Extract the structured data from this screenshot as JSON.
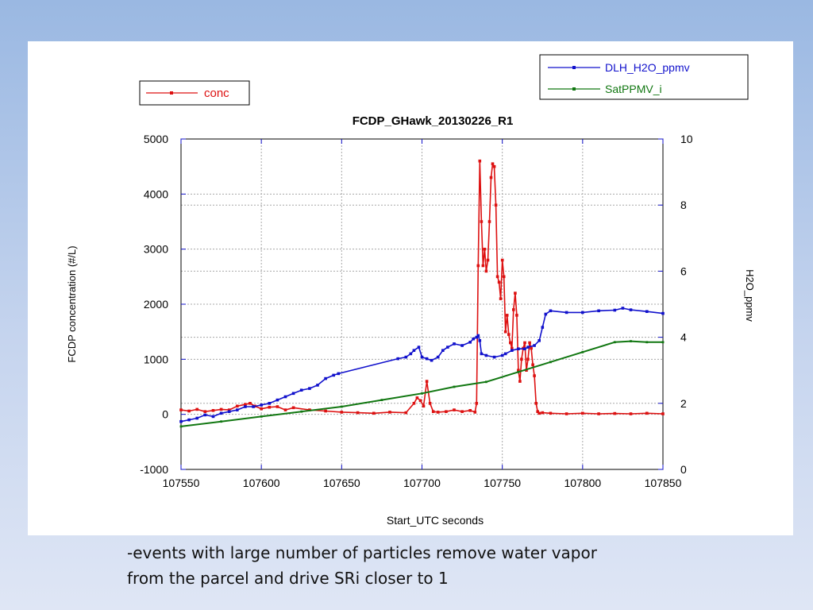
{
  "caption": {
    "line1": "-events with large number of particles remove water vapor",
    "line2": "from the parcel and drive SRi closer to 1"
  },
  "chart_data": {
    "type": "line",
    "title": "FCDP_GHawk_20130226_R1",
    "xlabel": "Start_UTC seconds",
    "ylabel_left": "FCDP concentration  (#/L)",
    "ylabel_right": "H2O_ppmv",
    "xlim": [
      107550,
      107850
    ],
    "ylim_left": [
      -1000,
      5000
    ],
    "ylim_right": [
      0,
      10
    ],
    "x_ticks": [
      107550,
      107600,
      107650,
      107700,
      107750,
      107800,
      107850
    ],
    "y_ticks_left": [
      -1000,
      0,
      1000,
      2000,
      3000,
      4000,
      5000
    ],
    "y_ticks_right": [
      0,
      2,
      4,
      6,
      8,
      10
    ],
    "grid": true,
    "legend_left": {
      "position": "top-left",
      "entries": [
        "conc"
      ]
    },
    "legend_right": {
      "position": "top-right",
      "entries": [
        "DLH_H2O_ppmv",
        "SatPPMV_i"
      ]
    },
    "series": [
      {
        "name": "conc",
        "axis": "left",
        "color": "#dd1111",
        "x": [
          107550,
          107555,
          107560,
          107565,
          107570,
          107575,
          107580,
          107585,
          107590,
          107593,
          107596,
          107600,
          107605,
          107610,
          107615,
          107620,
          107630,
          107640,
          107650,
          107660,
          107670,
          107680,
          107690,
          107695,
          107697,
          107699,
          107701,
          107703,
          107705,
          107707,
          107710,
          107715,
          107720,
          107725,
          107730,
          107733,
          107734,
          107735,
          107736,
          107737,
          107738,
          107739,
          107740,
          107741,
          107742,
          107743,
          107744,
          107745,
          107746,
          107747,
          107748,
          107749,
          107750,
          107751,
          107752,
          107753,
          107754,
          107755,
          107756,
          107757,
          107758,
          107759,
          107760,
          107761,
          107762,
          107763,
          107764,
          107765,
          107766,
          107767,
          107768,
          107769,
          107770,
          107771,
          107772,
          107773,
          107775,
          107780,
          107790,
          107800,
          107810,
          107820,
          107830,
          107840,
          107850
        ],
        "values": [
          80,
          60,
          90,
          50,
          70,
          90,
          80,
          150,
          180,
          200,
          150,
          100,
          130,
          140,
          80,
          120,
          80,
          60,
          40,
          30,
          20,
          40,
          30,
          200,
          300,
          250,
          150,
          600,
          200,
          50,
          40,
          50,
          80,
          50,
          70,
          40,
          200,
          2700,
          4600,
          3500,
          2700,
          3000,
          2600,
          2800,
          3500,
          4300,
          4550,
          4500,
          3800,
          2500,
          2400,
          2100,
          2800,
          2500,
          1500,
          1800,
          1450,
          1300,
          1200,
          1900,
          2200,
          1800,
          800,
          600,
          1000,
          1200,
          1300,
          800,
          1000,
          1300,
          1200,
          900,
          700,
          200,
          50,
          20,
          30,
          20,
          10,
          20,
          10,
          15,
          10,
          20,
          10
        ]
      },
      {
        "name": "DLH_H2O_ppmv",
        "axis": "right",
        "color": "#1111cc",
        "x": [
          107550,
          107555,
          107560,
          107565,
          107570,
          107575,
          107580,
          107585,
          107590,
          107595,
          107600,
          107605,
          107610,
          107615,
          107620,
          107625,
          107630,
          107635,
          107640,
          107645,
          107648,
          107685,
          107690,
          107693,
          107695,
          107698,
          107700,
          107703,
          107706,
          107710,
          107713,
          107716,
          107720,
          107725,
          107730,
          107732,
          107734,
          107735,
          107736,
          107737,
          107740,
          107745,
          107750,
          107752,
          107756,
          107760,
          107764,
          107766,
          107770,
          107773,
          107775,
          107777,
          107780,
          107790,
          107800,
          107810,
          107820,
          107825,
          107830,
          107840,
          107850
        ],
        "values": [
          1.45,
          1.5,
          1.55,
          1.65,
          1.6,
          1.7,
          1.75,
          1.8,
          1.9,
          1.9,
          1.95,
          2.0,
          2.1,
          2.2,
          2.3,
          2.4,
          2.45,
          2.55,
          2.75,
          2.85,
          2.9,
          3.35,
          3.4,
          3.5,
          3.6,
          3.7,
          3.4,
          3.35,
          3.3,
          3.4,
          3.6,
          3.7,
          3.8,
          3.75,
          3.85,
          3.95,
          4.0,
          4.05,
          3.9,
          3.5,
          3.45,
          3.4,
          3.45,
          3.5,
          3.6,
          3.65,
          3.65,
          3.7,
          3.75,
          3.9,
          4.3,
          4.7,
          4.8,
          4.75,
          4.75,
          4.8,
          4.82,
          4.88,
          4.83,
          4.78,
          4.72
        ]
      },
      {
        "name": "SatPPMV_i",
        "axis": "right",
        "color": "#117711",
        "x": [
          107550,
          107575,
          107600,
          107625,
          107650,
          107675,
          107700,
          107720,
          107740,
          107760,
          107780,
          107800,
          107820,
          107830,
          107840,
          107850
        ],
        "values": [
          1.3,
          1.45,
          1.6,
          1.75,
          1.9,
          2.1,
          2.3,
          2.5,
          2.65,
          2.95,
          3.25,
          3.55,
          3.85,
          3.88,
          3.85,
          3.85
        ]
      }
    ]
  }
}
